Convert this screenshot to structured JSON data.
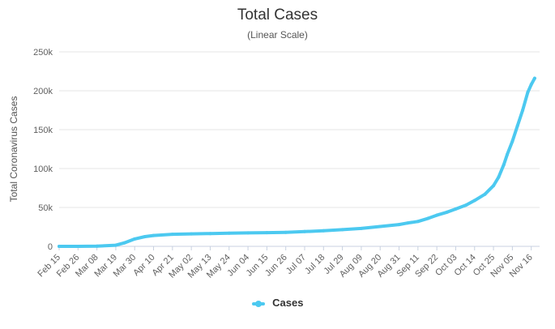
{
  "chart_data": {
    "type": "line",
    "title": "Total Cases",
    "subtitle": "(Linear Scale)",
    "ylabel": "Total Coronavirus Cases",
    "xlabel": "",
    "ylim": [
      0,
      250000
    ],
    "yticks": [
      0,
      50000,
      100000,
      150000,
      200000,
      250000
    ],
    "ytick_labels": [
      "0",
      "50k",
      "100k",
      "150k",
      "200k",
      "250k"
    ],
    "xticks": [
      "Feb 15",
      "Feb 26",
      "Mar 08",
      "Mar 19",
      "Mar 30",
      "Apr 10",
      "Apr 21",
      "May 02",
      "May 13",
      "May 24",
      "Jun 04",
      "Jun 15",
      "Jun 26",
      "Jul 07",
      "Jul 18",
      "Jul 29",
      "Aug 09",
      "Aug 20",
      "Aug 31",
      "Sep 11",
      "Sep 22",
      "Oct 03",
      "Oct 14",
      "Oct 25",
      "Nov 05",
      "Nov 16"
    ],
    "grid": true,
    "legend_position": "bottom-center",
    "color": "#4cc9f0",
    "series": [
      {
        "name": "Cases",
        "x": [
          "Feb 15",
          "Feb 26",
          "Mar 08",
          "Mar 19",
          "Mar 24",
          "Mar 30",
          "Apr 05",
          "Apr 10",
          "Apr 21",
          "May 02",
          "May 13",
          "May 24",
          "Jun 04",
          "Jun 15",
          "Jun 26",
          "Jul 07",
          "Jul 18",
          "Jul 29",
          "Aug 09",
          "Aug 20",
          "Aug 31",
          "Sep 05",
          "Sep 11",
          "Sep 17",
          "Sep 22",
          "Sep 28",
          "Oct 03",
          "Oct 09",
          "Oct 14",
          "Oct 20",
          "Oct 25",
          "Oct 28",
          "Oct 31",
          "Nov 02",
          "Nov 05",
          "Nov 08",
          "Nov 11",
          "Nov 14",
          "Nov 16",
          "Nov 18"
        ],
        "values": [
          0,
          0,
          200,
          1500,
          4500,
          9500,
          12500,
          14000,
          15500,
          16000,
          16500,
          17000,
          17300,
          17600,
          18000,
          19000,
          20000,
          21500,
          23000,
          25500,
          28000,
          30000,
          32000,
          36000,
          40000,
          44000,
          48000,
          53000,
          59000,
          67000,
          78000,
          89000,
          105000,
          118000,
          135000,
          155000,
          175000,
          198000,
          208000,
          216000
        ]
      }
    ]
  },
  "legend": {
    "label": "Cases"
  }
}
